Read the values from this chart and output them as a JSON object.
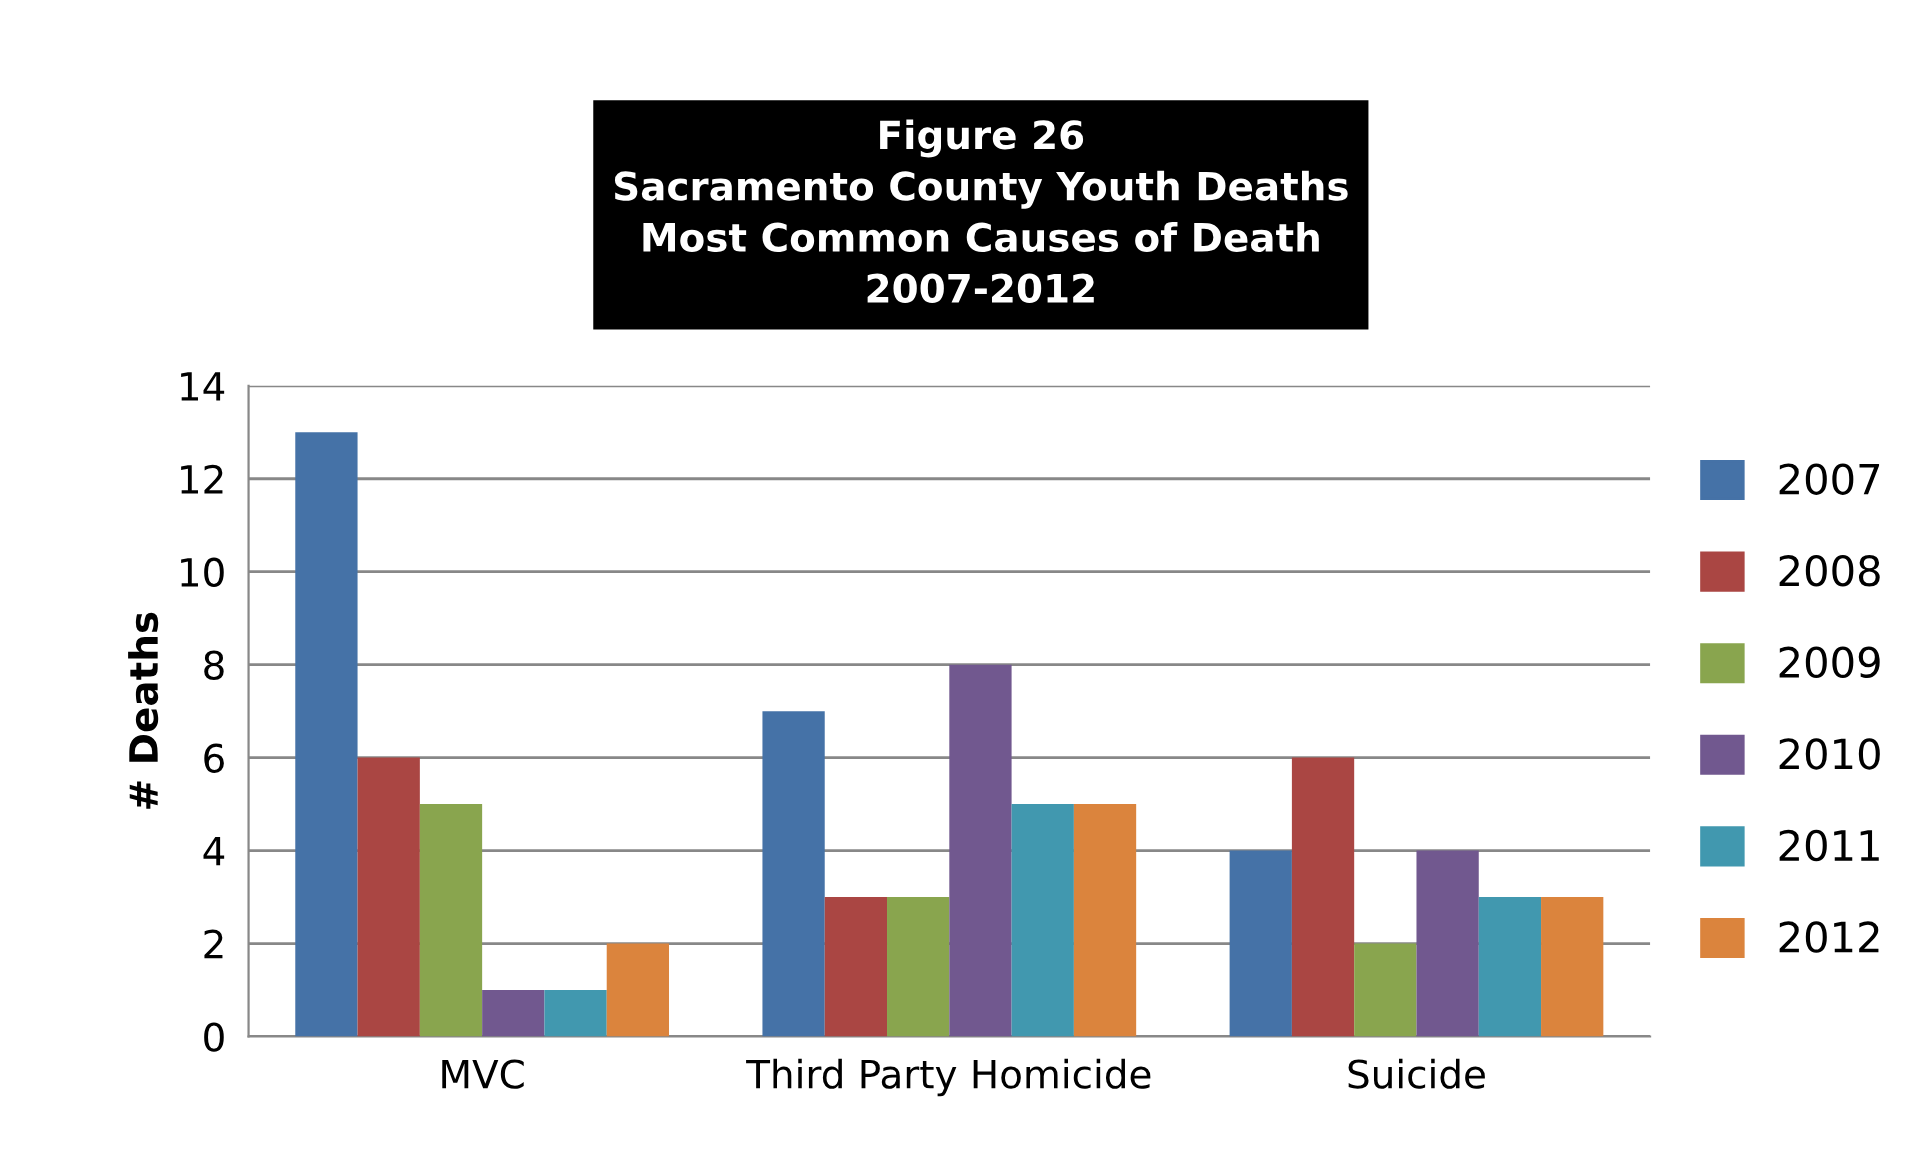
{
  "chart_data": {
    "type": "bar",
    "title": "Figure 26\nSacramento County Youth Deaths\nMost Common Causes of Death\n2007-2012",
    "ylabel": "# Deaths",
    "categories": [
      "MVC",
      "Third Party Homicide",
      "Suicide"
    ],
    "series": [
      {
        "name": "2007",
        "color": "#4572a7",
        "values": [
          13,
          7,
          4
        ]
      },
      {
        "name": "2008",
        "color": "#aa4643",
        "values": [
          6,
          3,
          6
        ]
      },
      {
        "name": "2009",
        "color": "#89a54e",
        "values": [
          5,
          3,
          2
        ]
      },
      {
        "name": "2010",
        "color": "#71588f",
        "values": [
          1,
          8,
          4
        ]
      },
      {
        "name": "2011",
        "color": "#4198af",
        "values": [
          1,
          5,
          3
        ]
      },
      {
        "name": "2012",
        "color": "#db843d",
        "values": [
          2,
          5,
          3
        ]
      }
    ],
    "ylim": [
      0,
      14
    ],
    "yticks": [
      0,
      2,
      4,
      6,
      8,
      10,
      12,
      14
    ],
    "grid": "y",
    "legend": "right"
  }
}
